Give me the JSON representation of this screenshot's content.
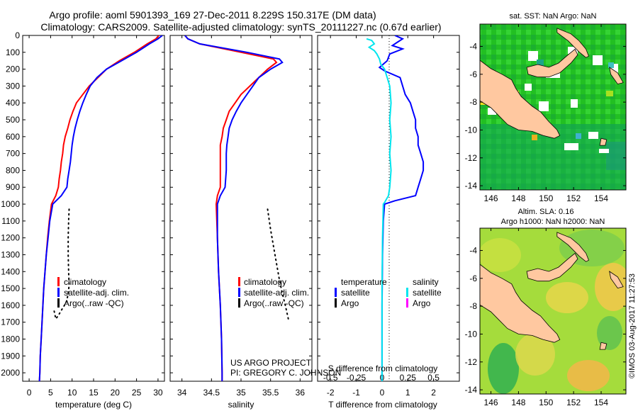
{
  "title": {
    "line1": "Argo profile: aoml 5901393_169 27-Dec-2011 8.229S 150.317E (DM data)",
    "line2": "Climatology: CARS2009. Satellite-adjusted climatology: synTS_20111227.nc (0.67d earlier)"
  },
  "project": {
    "line1": "US ARGO PROJECT",
    "line2": "PI: GREGORY C. JOHNSON"
  },
  "stamp": "©IMOS 03-Aug-2017 11:27:53",
  "colors": {
    "climatology": "#ff0000",
    "satellite": "#0000ff",
    "argo": "#000000",
    "satellite_s": "#00e5ee",
    "argo_s": "#ff00ff",
    "land": "#ffc8a0"
  },
  "depth_axis": {
    "min": 0,
    "max": 2050,
    "ticks": [
      0,
      100,
      200,
      300,
      400,
      500,
      600,
      700,
      800,
      900,
      1000,
      1100,
      1200,
      1300,
      1400,
      1500,
      1600,
      1700,
      1800,
      1900,
      2000
    ]
  },
  "chart_data": [
    {
      "type": "line",
      "name": "temperature-profile",
      "xlabel": "temperature (deg C)",
      "ylabel": "depth (dbar)",
      "xlim": [
        -1.5,
        31.5
      ],
      "ylim": [
        2050,
        0
      ],
      "xticks": [
        0,
        5,
        10,
        15,
        20,
        25,
        30
      ],
      "legend": [
        "climatology",
        "satellite-adj. clim.",
        "Argo(..raw -QC)"
      ],
      "series": [
        {
          "name": "climatology",
          "color": "red",
          "points": [
            [
              30.2,
              0
            ],
            [
              29.5,
              20
            ],
            [
              27.5,
              50
            ],
            [
              24.5,
              100
            ],
            [
              21,
              150
            ],
            [
              18,
              200
            ],
            [
              16,
              250
            ],
            [
              14,
              300
            ],
            [
              12.5,
              350
            ],
            [
              11,
              400
            ],
            [
              10.2,
              450
            ],
            [
              9.5,
              500
            ],
            [
              9,
              550
            ],
            [
              8.4,
              600
            ],
            [
              8,
              650
            ],
            [
              7.8,
              700
            ],
            [
              7.5,
              750
            ],
            [
              7.3,
              800
            ],
            [
              7,
              850
            ],
            [
              6.8,
              900
            ],
            [
              6.2,
              950
            ],
            [
              5.2,
              1000
            ],
            [
              4.7,
              1100
            ],
            [
              4.3,
              1200
            ],
            [
              4,
              1300
            ],
            [
              3.7,
              1400
            ],
            [
              3.4,
              1500
            ],
            [
              3.2,
              1600
            ],
            [
              3,
              1700
            ],
            [
              2.8,
              1800
            ],
            [
              2.6,
              1900
            ],
            [
              2.5,
              2000
            ],
            [
              2.4,
              2050
            ]
          ]
        },
        {
          "name": "satellite-adj. clim.",
          "color": "blue",
          "points": [
            [
              31,
              0
            ],
            [
              30,
              20
            ],
            [
              28,
              50
            ],
            [
              25,
              100
            ],
            [
              21.5,
              150
            ],
            [
              18,
              200
            ],
            [
              15.8,
              250
            ],
            [
              14.2,
              300
            ],
            [
              13.3,
              350
            ],
            [
              12.5,
              400
            ],
            [
              11.8,
              450
            ],
            [
              11.2,
              500
            ],
            [
              10.7,
              550
            ],
            [
              10.3,
              600
            ],
            [
              10,
              650
            ],
            [
              9.8,
              700
            ],
            [
              9.6,
              750
            ],
            [
              9.3,
              800
            ],
            [
              9,
              850
            ],
            [
              8.8,
              900
            ],
            [
              7.5,
              950
            ],
            [
              5.5,
              1000
            ],
            [
              4.8,
              1100
            ],
            [
              4.4,
              1200
            ],
            [
              4,
              1300
            ],
            [
              3.7,
              1400
            ],
            [
              3.4,
              1500
            ],
            [
              3.2,
              1600
            ],
            [
              3,
              1700
            ],
            [
              2.8,
              1800
            ],
            [
              2.6,
              1900
            ],
            [
              2.5,
              2000
            ],
            [
              2.4,
              2050
            ]
          ]
        },
        {
          "name": "Argo",
          "color": "black",
          "points": [
            [
              9.3,
              1030
            ],
            [
              9.2,
              1100
            ],
            [
              9.1,
              1200
            ],
            [
              9.1,
              1300
            ],
            [
              9.2,
              1400
            ],
            [
              9.3,
              1480
            ],
            [
              9.1,
              1530
            ],
            [
              8.7,
              1580
            ],
            [
              7.5,
              1630
            ],
            [
              6.8,
              1660
            ],
            [
              6.2,
              1680
            ],
            [
              5.8,
              1630
            ]
          ]
        }
      ]
    },
    {
      "type": "line",
      "name": "salinity-profile",
      "xlabel": "salinity",
      "ylabel": "depth (dbar)",
      "xlim": [
        33.8,
        36.2
      ],
      "ylim": [
        2050,
        0
      ],
      "xticks": [
        34,
        34.5,
        35,
        35.5,
        36
      ],
      "xticklabels": [
        "34",
        "34.5",
        "35",
        "35.5",
        "36"
      ],
      "legend": [
        "climatology",
        "satellite-adj. clim.",
        "Argo(..raw -QC)"
      ],
      "series": [
        {
          "name": "climatology",
          "color": "red",
          "points": [
            [
              34.05,
              0
            ],
            [
              34.1,
              20
            ],
            [
              34.3,
              50
            ],
            [
              35,
              100
            ],
            [
              35.55,
              140
            ],
            [
              35.6,
              160
            ],
            [
              35.45,
              200
            ],
            [
              35.3,
              250
            ],
            [
              35.15,
              300
            ],
            [
              35,
              350
            ],
            [
              34.9,
              400
            ],
            [
              34.8,
              450
            ],
            [
              34.75,
              500
            ],
            [
              34.7,
              550
            ],
            [
              34.68,
              600
            ],
            [
              34.65,
              650
            ],
            [
              34.65,
              700
            ],
            [
              34.65,
              800
            ],
            [
              34.65,
              900
            ],
            [
              34.6,
              950
            ],
            [
              34.58,
              1000
            ],
            [
              34.6,
              1200
            ],
            [
              34.62,
              1400
            ],
            [
              34.65,
              1600
            ],
            [
              34.67,
              1800
            ],
            [
              34.68,
              2000
            ],
            [
              34.68,
              2050
            ]
          ]
        },
        {
          "name": "satellite-adj. clim.",
          "color": "blue",
          "points": [
            [
              34.05,
              0
            ],
            [
              34.1,
              20
            ],
            [
              34.3,
              50
            ],
            [
              35.1,
              100
            ],
            [
              35.65,
              140
            ],
            [
              35.7,
              160
            ],
            [
              35.5,
              200
            ],
            [
              35.3,
              250
            ],
            [
              35.2,
              300
            ],
            [
              35.1,
              350
            ],
            [
              35,
              400
            ],
            [
              34.92,
              450
            ],
            [
              34.85,
              500
            ],
            [
              34.8,
              550
            ],
            [
              34.78,
              600
            ],
            [
              34.76,
              650
            ],
            [
              34.75,
              700
            ],
            [
              34.75,
              800
            ],
            [
              34.73,
              900
            ],
            [
              34.65,
              950
            ],
            [
              34.6,
              1000
            ],
            [
              34.6,
              1200
            ],
            [
              34.62,
              1400
            ],
            [
              34.65,
              1600
            ],
            [
              34.67,
              1800
            ],
            [
              34.68,
              2000
            ],
            [
              34.68,
              2050
            ]
          ]
        },
        {
          "name": "Argo",
          "color": "black",
          "points": [
            [
              35.45,
              1030
            ],
            [
              35.5,
              1150
            ],
            [
              35.55,
              1250
            ],
            [
              35.6,
              1350
            ],
            [
              35.65,
              1450
            ],
            [
              35.7,
              1530
            ],
            [
              35.75,
              1600
            ],
            [
              35.8,
              1680
            ]
          ]
        }
      ]
    },
    {
      "type": "line",
      "name": "difference-profile",
      "xlabel": "T difference from climatology",
      "xlabel2": "S difference from climatology",
      "xlim": [
        -2.5,
        3
      ],
      "ylim": [
        2050,
        0
      ],
      "xticks": [
        -2,
        -1,
        0,
        1,
        2
      ],
      "xticks_s": [
        -0.5,
        -0.25,
        0,
        0.25,
        0.5
      ],
      "xticklabels_s": [
        "-0.5",
        "-0.25",
        "0",
        "0.25",
        "0.5"
      ],
      "legend": {
        "temperature": [
          "satellite",
          "Argo"
        ],
        "salinity": [
          "satellite",
          "Argo"
        ]
      },
      "series": [
        {
          "name": "T satellite",
          "color": "blue",
          "points": [
            [
              0.5,
              0
            ],
            [
              0.8,
              20
            ],
            [
              0.6,
              40
            ],
            [
              0.4,
              60
            ],
            [
              0.8,
              80
            ],
            [
              0.3,
              110
            ],
            [
              0.2,
              150
            ],
            [
              -0.1,
              190
            ],
            [
              0.1,
              210
            ],
            [
              0.7,
              250
            ],
            [
              0.8,
              300
            ],
            [
              0.9,
              350
            ],
            [
              1.1,
              400
            ],
            [
              1.2,
              450
            ],
            [
              1.3,
              500
            ],
            [
              1.3,
              550
            ],
            [
              1.4,
              600
            ],
            [
              1.4,
              650
            ],
            [
              1.5,
              700
            ],
            [
              1.6,
              750
            ],
            [
              1.6,
              800
            ],
            [
              1.5,
              850
            ],
            [
              1.4,
              900
            ],
            [
              1.3,
              950
            ],
            [
              0.5,
              980
            ],
            [
              0.1,
              1000
            ],
            [
              0.05,
              1100
            ],
            [
              0.02,
              1300
            ],
            [
              0,
              1600
            ],
            [
              0,
              2050
            ]
          ]
        },
        {
          "name": "S satellite",
          "color": "cyan",
          "points": [
            [
              -0.6,
              20
            ],
            [
              -0.4,
              30
            ],
            [
              -0.3,
              50
            ],
            [
              -0.5,
              70
            ],
            [
              -0.3,
              90
            ],
            [
              -0.2,
              110
            ],
            [
              -0.1,
              140
            ],
            [
              -0.05,
              170
            ],
            [
              0.1,
              200
            ],
            [
              0.2,
              250
            ],
            [
              0.3,
              300
            ],
            [
              0.35,
              400
            ],
            [
              0.3,
              500
            ],
            [
              0.35,
              600
            ],
            [
              0.3,
              700
            ],
            [
              0.35,
              800
            ],
            [
              0.3,
              900
            ],
            [
              0.25,
              950
            ],
            [
              0.1,
              990
            ],
            [
              0.05,
              1000
            ],
            [
              0.02,
              1200
            ],
            [
              0,
              1500
            ],
            [
              0,
              2050
            ]
          ]
        }
      ]
    },
    {
      "type": "heatmap",
      "name": "sst-map",
      "title": "sat. SST: NaN Argo: NaN",
      "xlim": [
        145.2,
        155.8
      ],
      "ylim": [
        -14.3,
        -2.4
      ],
      "xticks": [
        146,
        148,
        150,
        152,
        154
      ],
      "yticks": [
        -4,
        -6,
        -8,
        -10,
        -12,
        -14
      ]
    },
    {
      "type": "heatmap",
      "name": "sla-map",
      "title1": "Altim. SLA: 0.16",
      "title2": "Argo h1000: NaN h2000: NaN",
      "xlim": [
        145.2,
        155.8
      ],
      "ylim": [
        -14.3,
        -2.4
      ],
      "xticks": [
        146,
        148,
        150,
        152,
        154
      ],
      "yticks": [
        -4,
        -6,
        -8,
        -10,
        -12,
        -14
      ]
    }
  ]
}
